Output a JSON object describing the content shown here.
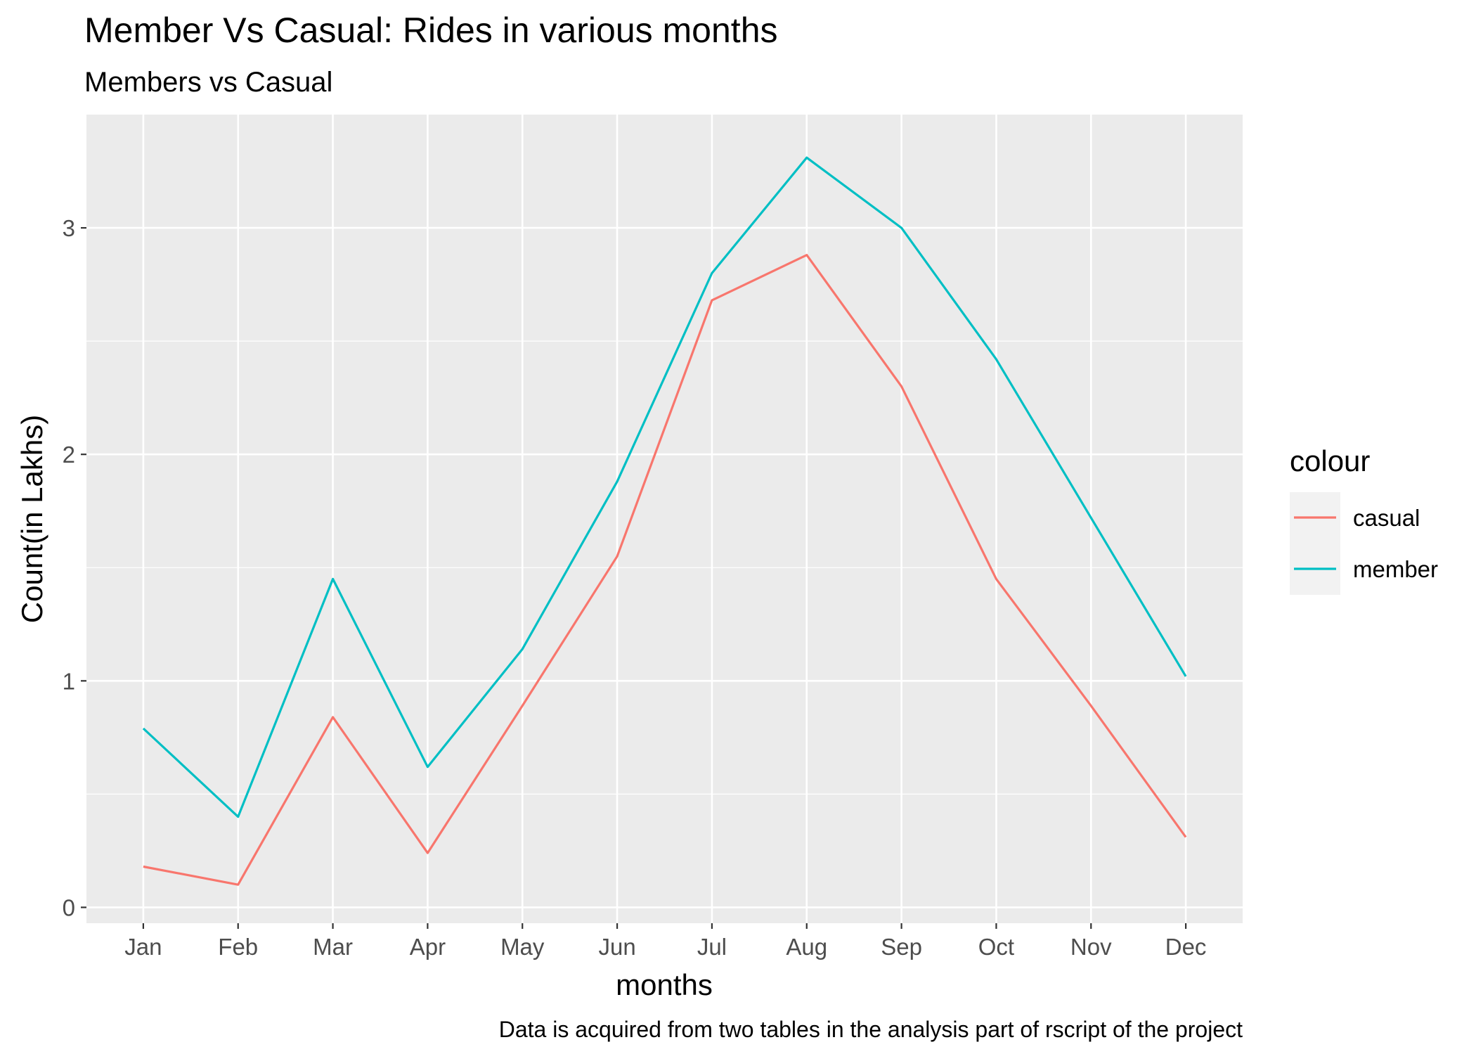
{
  "chart_data": {
    "type": "line",
    "title": "Member Vs Casual: Rides in various months",
    "subtitle": "Members vs Casual",
    "xlabel": "months",
    "ylabel": "Count(in Lakhs)",
    "caption": "Data is acquired from two tables in the analysis part of rscript of the project",
    "categories": [
      "Jan",
      "Feb",
      "Mar",
      "Apr",
      "May",
      "Jun",
      "Jul",
      "Aug",
      "Sep",
      "Oct",
      "Nov",
      "Dec"
    ],
    "y_ticks": [
      0,
      1,
      2,
      3
    ],
    "y_tick_labels": [
      "0",
      "1",
      "2",
      "3"
    ],
    "ylim": [
      -0.07,
      3.5
    ],
    "grid": true,
    "legend": {
      "title": "colour",
      "placement": "right"
    },
    "series": [
      {
        "name": "casual",
        "color": "#F8766D",
        "values": [
          0.18,
          0.1,
          0.84,
          0.24,
          0.89,
          1.55,
          2.68,
          2.88,
          2.3,
          1.45,
          0.89,
          0.31
        ]
      },
      {
        "name": "member",
        "color": "#00BFC4",
        "values": [
          0.79,
          0.4,
          1.45,
          0.62,
          1.14,
          1.88,
          2.8,
          3.31,
          3.0,
          2.42,
          1.72,
          1.02
        ]
      }
    ],
    "panel_background": "#EBEBEB",
    "grid_color": "#FFFFFF"
  }
}
